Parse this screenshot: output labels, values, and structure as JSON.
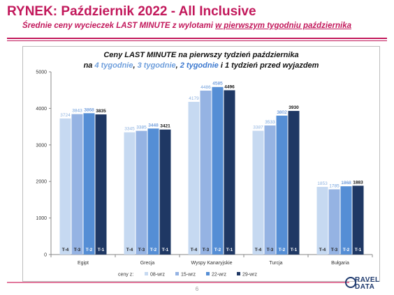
{
  "header": {
    "title": "RYNEK: Październik 2022 - All Inclusive",
    "subtitle_prefix": "Średnie ceny wycieczek LAST MINUTE z wylotami ",
    "subtitle_underlined": "w pierwszym tygodniu października"
  },
  "chart_title": {
    "line1": "Ceny LAST MINUTE na pierwszy tydzień października",
    "na": "na ",
    "w4": "4 tygodnie",
    "sep1": ", ",
    "w3": "3 tygodnie",
    "sep2": ", ",
    "w2": "2 tygodnie",
    "and": " i ",
    "w1": "1 tydzień",
    "tail": " przed wyjazdem"
  },
  "chart_data": {
    "type": "bar",
    "categories": [
      "Egipt",
      "Grecja",
      "Wyspy Kanaryjskie",
      "Turcja",
      "Bułgaria"
    ],
    "series": [
      {
        "name": "08-wrz",
        "tag": "T-4",
        "color": "#c6d9f1",
        "label_color": "#8eb2e0",
        "values": [
          3724,
          3345,
          4179,
          3387,
          1853
        ]
      },
      {
        "name": "15-wrz",
        "tag": "T-3",
        "color": "#95b3e3",
        "label_color": "#6f9fdc",
        "values": [
          3843,
          3385,
          4486,
          3533,
          1785
        ]
      },
      {
        "name": "22-wrz",
        "tag": "T-2",
        "color": "#558ed5",
        "label_color": "#3b78cf",
        "values": [
          3868,
          3448,
          4585,
          3802,
          1868
        ]
      },
      {
        "name": "29-wrz",
        "tag": "T-1",
        "color": "#1f3864",
        "label_color": "#111111",
        "values": [
          3835,
          3421,
          4496,
          3930,
          1883
        ]
      }
    ],
    "ylim": [
      0,
      5000
    ],
    "yticks": [
      0,
      1000,
      2000,
      3000,
      4000,
      5000
    ],
    "legend_prefix": "ceny z:",
    "grid": false,
    "legend_position": "bottom"
  },
  "footer": {
    "page_number": "6",
    "logo_line1": "RAVEL",
    "logo_line2": "DATA"
  }
}
